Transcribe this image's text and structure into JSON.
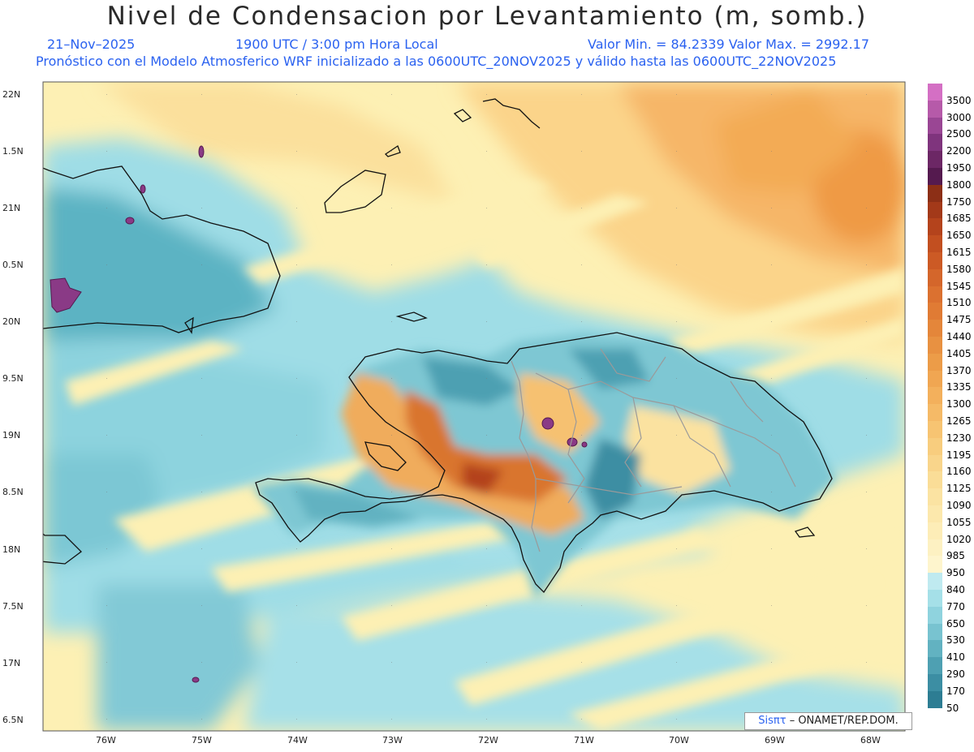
{
  "header": {
    "title": "Nivel de Condensacion por Levantamiento (m, somb.)",
    "date": "21–Nov–2025",
    "time": "1900 UTC / 3:00 pm Hora Local",
    "min_max": "Valor Min. = 84.2339   Valor Max. = 2992.17",
    "subtitle": "Pronóstico con el Modelo Atmosferico WRF inicializado a las 0600UTC_20NOV2025 y válido hasta las  0600UTC_22NOV2025"
  },
  "map": {
    "lat_labels": [
      "22N",
      "1.5N",
      "21N",
      "0.5N",
      "20N",
      "9.5N",
      "19N",
      "8.5N",
      "18N",
      "7.5N",
      "17N",
      "6.5N"
    ],
    "lon_labels": [
      "76W",
      "75W",
      "74W",
      "73W",
      "72W",
      "71W",
      "70W",
      "69W",
      "68W"
    ],
    "credit_sis": "Sisπτ",
    "credit_rest": " –  ONAMET/REP.DOM."
  },
  "colorbar": {
    "levels": [
      "3500",
      "3000",
      "2500",
      "2200",
      "1950",
      "1800",
      "1750",
      "1685",
      "1650",
      "1615",
      "1580",
      "1545",
      "1510",
      "1475",
      "1440",
      "1405",
      "1370",
      "1335",
      "1300",
      "1265",
      "1230",
      "1195",
      "1160",
      "1125",
      "1090",
      "1055",
      "1020",
      "985",
      "950",
      "840",
      "770",
      "650",
      "530",
      "410",
      "290",
      "170",
      "50"
    ],
    "colors": [
      "#d46fc4",
      "#b65aa9",
      "#9a4694",
      "#7f347d",
      "#6c2765",
      "#551a4f",
      "#8c2f16",
      "#a33919",
      "#b4431c",
      "#c24f20",
      "#cc5a25",
      "#d4662b",
      "#db7130",
      "#e07b34",
      "#e4863a",
      "#e89141",
      "#ec9c48",
      "#f0a652",
      "#f3b05c",
      "#f5ba67",
      "#f7c472",
      "#f8cd7e",
      "#f9d58b",
      "#fadd97",
      "#fbe3a2",
      "#fce8ac",
      "#fdedb7",
      "#fdf1c2",
      "#fef5cd",
      "#bfeaf0",
      "#a5e0e8",
      "#8fd3de",
      "#78c3d0",
      "#62b2c1",
      "#4ea0b2",
      "#3c8ea3",
      "#2d7d93"
    ]
  }
}
